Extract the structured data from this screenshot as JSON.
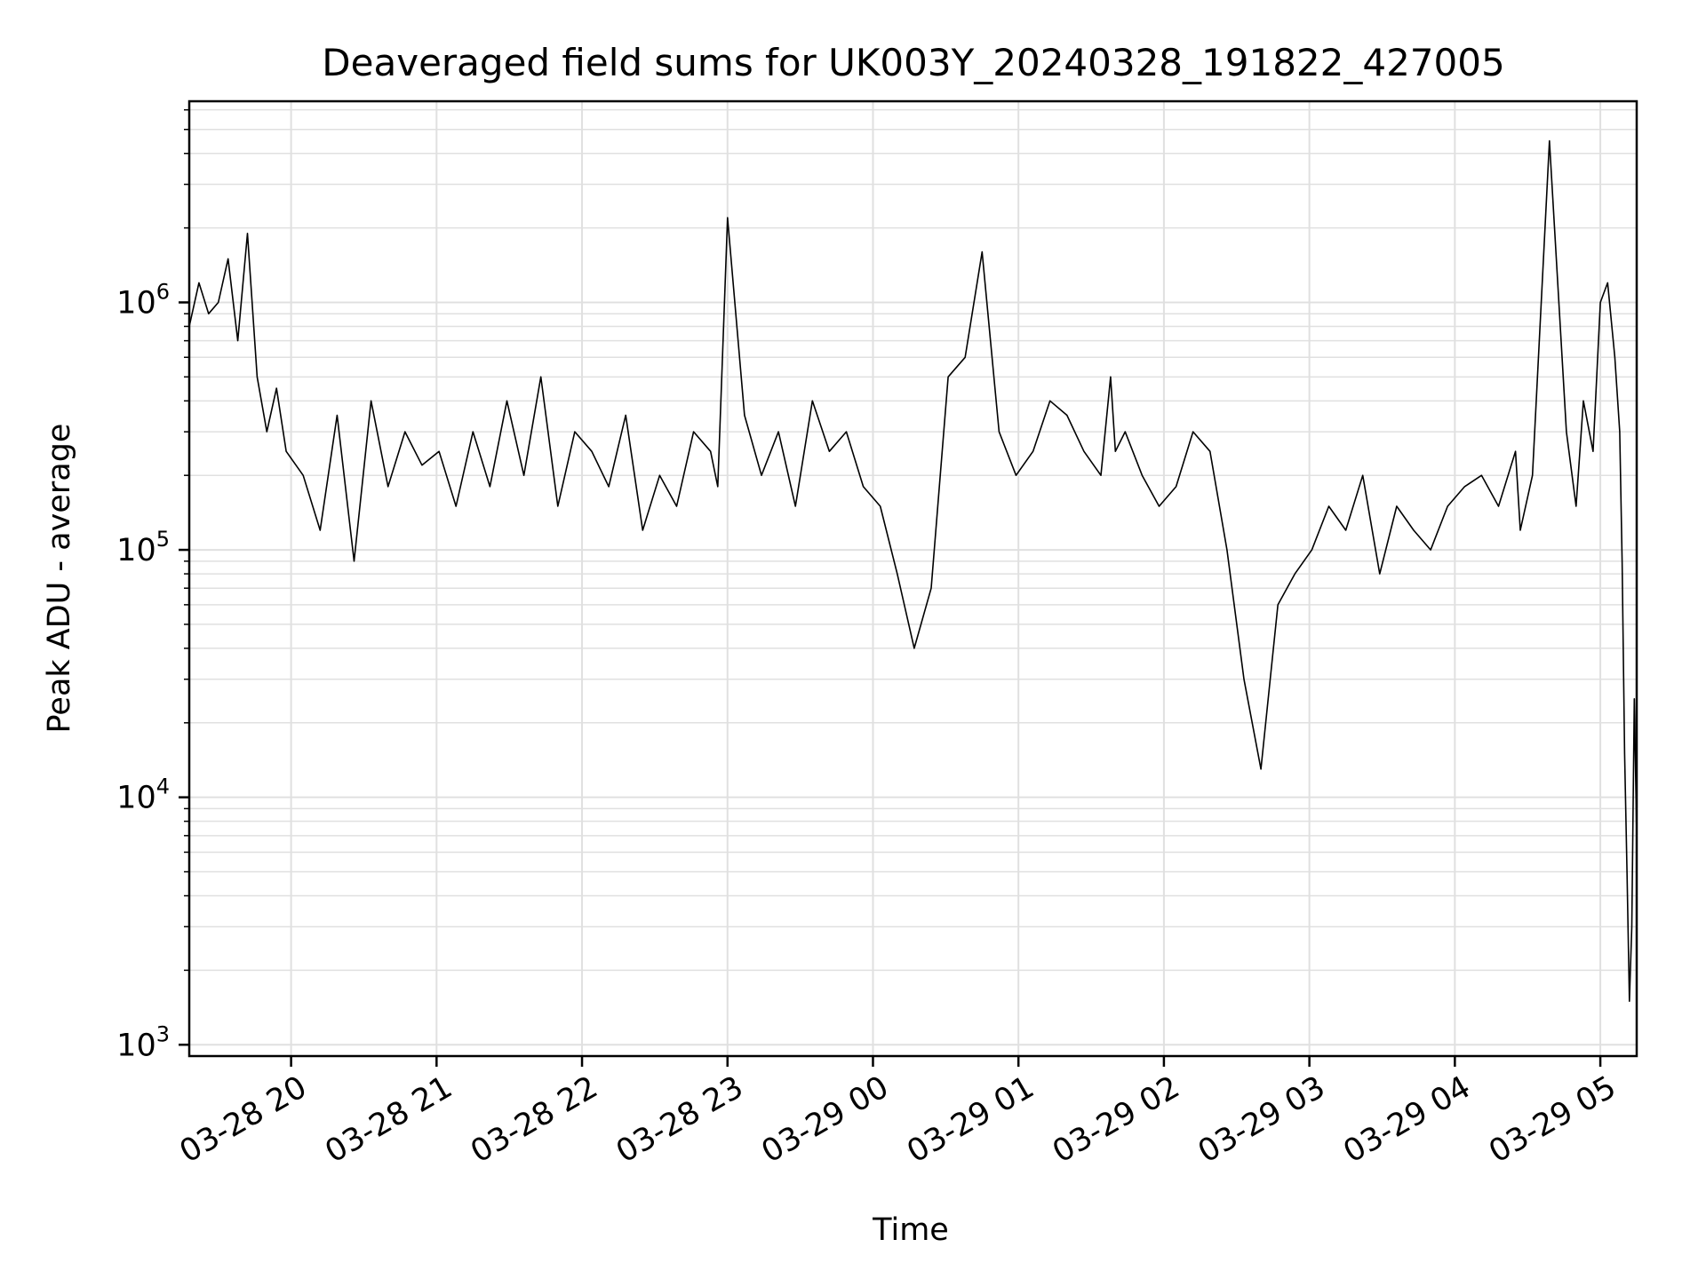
{
  "chart_data": {
    "type": "line",
    "title": "Deaveraged field sums for UK003Y_20240328_191822_427005",
    "xlabel": "Time",
    "ylabel": "Peak ADU - average",
    "y_scale": "log",
    "ylim": [
      900,
      6500000
    ],
    "xlim": [
      "2024-03-28 19:18:00",
      "2024-03-29 05:15:00"
    ],
    "grid": true,
    "line_color": "#000000",
    "grid_color": "#e0e0e0",
    "x_ticks": [
      {
        "t": "2024-03-28 20:00",
        "label": "03-28 20"
      },
      {
        "t": "2024-03-28 21:00",
        "label": "03-28 21"
      },
      {
        "t": "2024-03-28 22:00",
        "label": "03-28 22"
      },
      {
        "t": "2024-03-28 23:00",
        "label": "03-28 23"
      },
      {
        "t": "2024-03-29 00:00",
        "label": "03-29 00"
      },
      {
        "t": "2024-03-29 01:00",
        "label": "03-29 01"
      },
      {
        "t": "2024-03-29 02:00",
        "label": "03-29 02"
      },
      {
        "t": "2024-03-29 03:00",
        "label": "03-29 03"
      },
      {
        "t": "2024-03-29 04:00",
        "label": "03-29 04"
      },
      {
        "t": "2024-03-29 05:00",
        "label": "03-29 05"
      }
    ],
    "y_ticks": [
      {
        "value": 1000,
        "base": "10",
        "exp": "3"
      },
      {
        "value": 10000,
        "base": "10",
        "exp": "4"
      },
      {
        "value": 100000,
        "base": "10",
        "exp": "5"
      },
      {
        "value": 1000000,
        "base": "10",
        "exp": "6"
      }
    ],
    "series": [
      {
        "x": [
          "2024-03-28 19:18",
          "2024-03-28 19:22",
          "2024-03-28 19:26",
          "2024-03-28 19:30",
          "2024-03-28 19:34",
          "2024-03-28 19:38",
          "2024-03-28 19:42",
          "2024-03-28 19:46",
          "2024-03-28 19:50",
          "2024-03-28 19:54",
          "2024-03-28 19:58",
          "2024-03-28 20:05",
          "2024-03-28 20:12",
          "2024-03-28 20:19",
          "2024-03-28 20:26",
          "2024-03-28 20:33",
          "2024-03-28 20:40",
          "2024-03-28 20:47",
          "2024-03-28 20:54",
          "2024-03-28 21:01",
          "2024-03-28 21:08",
          "2024-03-28 21:15",
          "2024-03-28 21:22",
          "2024-03-28 21:29",
          "2024-03-28 21:36",
          "2024-03-28 21:43",
          "2024-03-28 21:50",
          "2024-03-28 21:57",
          "2024-03-28 22:04",
          "2024-03-28 22:11",
          "2024-03-28 22:18",
          "2024-03-28 22:25",
          "2024-03-28 22:32",
          "2024-03-28 22:39",
          "2024-03-28 22:46",
          "2024-03-28 22:53",
          "2024-03-28 22:56",
          "2024-03-28 23:00",
          "2024-03-28 23:07",
          "2024-03-28 23:14",
          "2024-03-28 23:21",
          "2024-03-28 23:28",
          "2024-03-28 23:35",
          "2024-03-28 23:42",
          "2024-03-28 23:49",
          "2024-03-28 23:56",
          "2024-03-29 00:03",
          "2024-03-29 00:10",
          "2024-03-29 00:17",
          "2024-03-29 00:24",
          "2024-03-29 00:31",
          "2024-03-29 00:38",
          "2024-03-29 00:45",
          "2024-03-29 00:52",
          "2024-03-29 00:59",
          "2024-03-29 01:06",
          "2024-03-29 01:13",
          "2024-03-29 01:20",
          "2024-03-29 01:27",
          "2024-03-29 01:34",
          "2024-03-29 01:38",
          "2024-03-29 01:40",
          "2024-03-29 01:44",
          "2024-03-29 01:51",
          "2024-03-29 01:58",
          "2024-03-29 02:05",
          "2024-03-29 02:12",
          "2024-03-29 02:19",
          "2024-03-29 02:26",
          "2024-03-29 02:33",
          "2024-03-29 02:40",
          "2024-03-29 02:47",
          "2024-03-29 02:54",
          "2024-03-29 03:01",
          "2024-03-29 03:08",
          "2024-03-29 03:15",
          "2024-03-29 03:22",
          "2024-03-29 03:29",
          "2024-03-29 03:36",
          "2024-03-29 03:43",
          "2024-03-29 03:50",
          "2024-03-29 03:57",
          "2024-03-29 04:04",
          "2024-03-29 04:11",
          "2024-03-29 04:18",
          "2024-03-29 04:25",
          "2024-03-29 04:27",
          "2024-03-29 04:32",
          "2024-03-29 04:39",
          "2024-03-29 04:46",
          "2024-03-29 04:50",
          "2024-03-29 04:53",
          "2024-03-29 04:57",
          "2024-03-29 05:00",
          "2024-03-29 05:03",
          "2024-03-29 05:06",
          "2024-03-29 05:08",
          "2024-03-29 05:09",
          "2024-03-29 05:10",
          "2024-03-29 05:11",
          "2024-03-29 05:12",
          "2024-03-29 05:13",
          "2024-03-29 05:14",
          "2024-03-29 05:15"
        ],
        "y": [
          800000,
          1200000,
          900000,
          1000000,
          1500000,
          700000,
          1900000,
          500000,
          300000,
          450000,
          250000,
          200000,
          120000,
          350000,
          90000,
          400000,
          180000,
          300000,
          220000,
          250000,
          150000,
          300000,
          180000,
          400000,
          200000,
          500000,
          150000,
          300000,
          250000,
          180000,
          350000,
          120000,
          200000,
          150000,
          300000,
          250000,
          180000,
          2200000,
          350000,
          200000,
          300000,
          150000,
          400000,
          250000,
          300000,
          180000,
          150000,
          80000,
          40000,
          70000,
          500000,
          600000,
          1600000,
          300000,
          200000,
          250000,
          400000,
          350000,
          250000,
          200000,
          500000,
          250000,
          300000,
          200000,
          150000,
          180000,
          300000,
          250000,
          100000,
          30000,
          13000,
          60000,
          80000,
          100000,
          150000,
          120000,
          200000,
          80000,
          150000,
          120000,
          100000,
          150000,
          180000,
          200000,
          150000,
          250000,
          120000,
          200000,
          4500000,
          300000,
          150000,
          400000,
          250000,
          1000000,
          1200000,
          600000,
          300000,
          90000,
          15000,
          5000,
          1500,
          3000,
          25000,
          7000
        ]
      }
    ]
  }
}
